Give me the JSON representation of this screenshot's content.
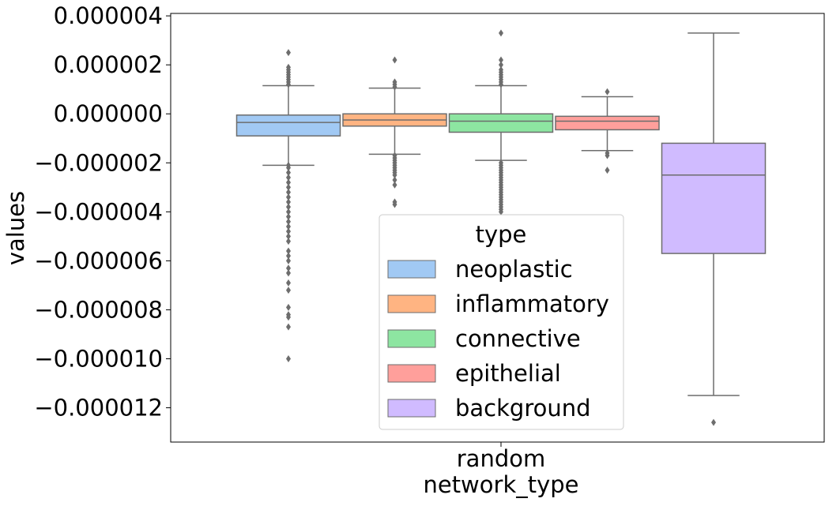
{
  "chart_data": {
    "type": "box",
    "xlabel": "network_type",
    "ylabel": "values",
    "categories": [
      "random"
    ],
    "ylim": [
      -1.34e-05,
      4.1e-06
    ],
    "yticks": [
      4e-06,
      2e-06,
      0.0,
      -2e-06,
      -4e-06,
      -6e-06,
      -8e-06,
      -1e-05,
      -1.2e-05
    ],
    "ytick_labels": [
      "0.000004",
      "0.000002",
      "0.000000",
      "−0.000002",
      "−0.000004",
      "−0.000006",
      "−0.000008",
      "−0.000010",
      "−0.000012"
    ],
    "grid": false,
    "legend": {
      "title": "type",
      "position": "lower-center"
    },
    "series": [
      {
        "name": "neoplastic",
        "color": "#a1c9f4",
        "whisker_low": -2.1e-06,
        "q1": -9e-07,
        "median": -3.5e-07,
        "q3": -5e-08,
        "whisker_high": 1.15e-06,
        "outliers": [
          2.5e-06,
          1.9e-06,
          1.8e-06,
          1.7e-06,
          1.6e-06,
          1.5e-06,
          1.4e-06,
          1.3e-06,
          1.2e-06,
          -2.1e-06,
          -2.2e-06,
          -2.4e-06,
          -2.6e-06,
          -2.8e-06,
          -3e-06,
          -3.2e-06,
          -3.4e-06,
          -3.6e-06,
          -3.8e-06,
          -4e-06,
          -4.2e-06,
          -4.4e-06,
          -4.6e-06,
          -4.8e-06,
          -5e-06,
          -5.2e-06,
          -5.6e-06,
          -5.8e-06,
          -6e-06,
          -6.3e-06,
          -6.5e-06,
          -6.9e-06,
          -7.2e-06,
          -7.9e-06,
          -8.2e-06,
          -8.3e-06,
          -8.7e-06,
          -1e-05
        ]
      },
      {
        "name": "inflammatory",
        "color": "#ffb482",
        "whisker_low": -1.65e-06,
        "q1": -5e-07,
        "median": -2.5e-07,
        "q3": 0.0,
        "whisker_high": 1.05e-06,
        "outliers": [
          2.2e-06,
          1.3e-06,
          1.2e-06,
          1.1e-06,
          -1.7e-06,
          -1.8e-06,
          -1.9e-06,
          -2e-06,
          -2.1e-06,
          -2.2e-06,
          -2.3e-06,
          -2.4e-06,
          -2.5e-06,
          -2.7e-06,
          -2.9e-06,
          -3.6e-06,
          -3.7e-06
        ]
      },
      {
        "name": "connective",
        "color": "#8de5a1",
        "whisker_low": -1.9e-06,
        "q1": -7.5e-07,
        "median": -3e-07,
        "q3": 0.0,
        "whisker_high": 1.15e-06,
        "outliers": [
          3.3e-06,
          2.2e-06,
          2e-06,
          1.8e-06,
          1.7e-06,
          1.6e-06,
          1.5e-06,
          1.4e-06,
          1.3e-06,
          1.2e-06,
          -2e-06,
          -2.1e-06,
          -2.2e-06,
          -2.3e-06,
          -2.4e-06,
          -2.5e-06,
          -2.6e-06,
          -2.7e-06,
          -2.8e-06,
          -2.9e-06,
          -3e-06,
          -3.1e-06,
          -3.2e-06,
          -3.3e-06,
          -3.4e-06,
          -3.5e-06,
          -3.6e-06,
          -3.7e-06,
          -3.8e-06,
          -3.9e-06,
          -4e-06
        ]
      },
      {
        "name": "epithelial",
        "color": "#ff9f9b",
        "whisker_low": -1.5e-06,
        "q1": -6.5e-07,
        "median": -3e-07,
        "q3": -1e-07,
        "whisker_high": 7e-07,
        "outliers": [
          9e-07,
          -1.6e-06,
          -1.7e-06,
          -2.3e-06
        ]
      },
      {
        "name": "background",
        "color": "#d0bbff",
        "whisker_low": -1.15e-05,
        "q1": -5.7e-06,
        "median": -2.5e-06,
        "q3": -1.2e-06,
        "whisker_high": 3.3e-06,
        "outliers": [
          -1.26e-05
        ]
      }
    ]
  }
}
